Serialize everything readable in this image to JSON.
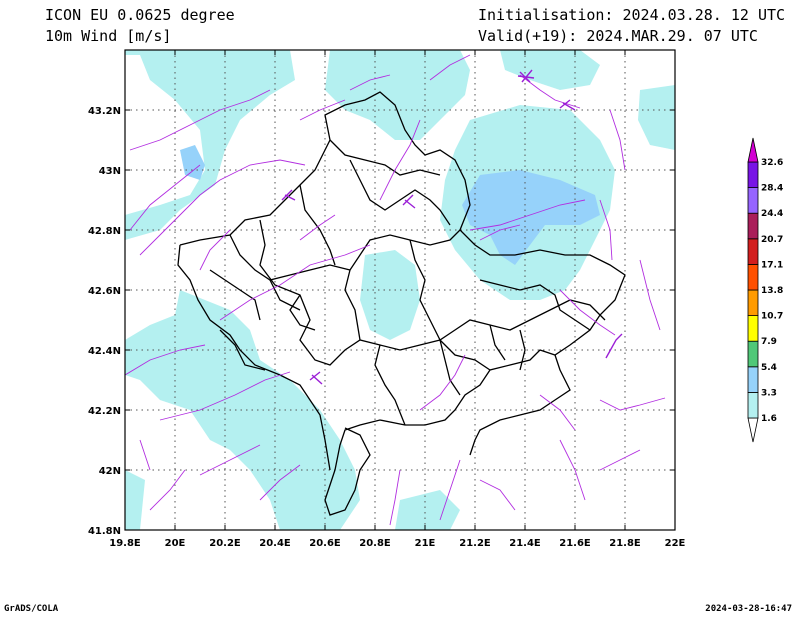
{
  "header": {
    "model": "ICON EU 0.0625 degree",
    "variable": "10m Wind [m/s]",
    "initialisation": "Initialisation: 2024.03.28. 12 UTC",
    "valid": "Valid(+19): 2024.MAR.29. 07 UTC"
  },
  "map": {
    "lon_range": [
      19.8,
      22.0
    ],
    "lat_range": [
      41.8,
      43.4
    ],
    "x_ticks": [
      "19.8E",
      "20E",
      "20.2E",
      "20.4E",
      "20.6E",
      "20.8E",
      "21E",
      "21.2E",
      "21.4E",
      "21.6E",
      "21.8E",
      "22E"
    ],
    "y_ticks": [
      "41.8N",
      "42N",
      "42.2N",
      "42.4N",
      "42.6N",
      "42.8N",
      "43N",
      "43.2N"
    ],
    "gridlines": "dotted"
  },
  "legend": {
    "levels": [
      "1.6",
      "3.3",
      "5.4",
      "7.9",
      "10.7",
      "13.8",
      "17.1",
      "20.7",
      "24.4",
      "28.4",
      "32.6"
    ],
    "colors": [
      "#b4f0f0",
      "#96d2fa",
      "#50c878",
      "#ffff00",
      "#ff9b00",
      "#ff5000",
      "#d21e1e",
      "#aa1e5a",
      "#9664ff",
      "#7814e6",
      "#d200d2"
    ]
  },
  "footer": {
    "left": "GrADS/COLA",
    "right": "2024-03-28-16:47"
  }
}
